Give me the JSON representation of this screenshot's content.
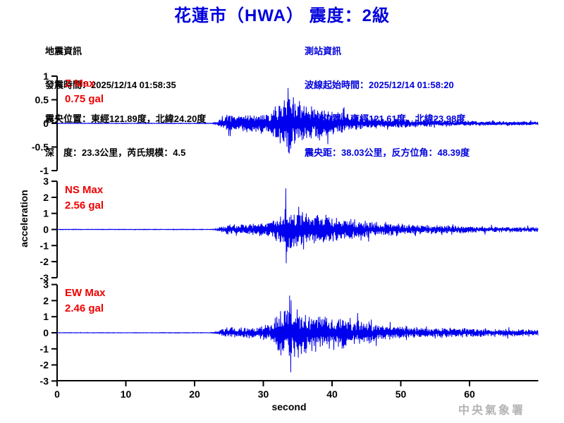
{
  "title": "花蓮市（HWA） 震度：2級",
  "earthquake_info": {
    "heading": "地震資訊",
    "origin_time": "發震時間：2025/12/14 01:58:35",
    "epicenter": "震央位置：東經121.89度，北緯24.20度",
    "depth_magnitude": "深　度：23.3公里，芮氏規模：4.5"
  },
  "station_info": {
    "heading": "測站資訊",
    "wave_start_time": "波線起始時間：2025/12/14 01:58:20",
    "station_location": "測站位置：東經121.61度，北緯23.98度",
    "distance_azimuth": "震央距：38.03公里，反方位角：48.39度"
  },
  "watermark": "中央氣象署",
  "colors": {
    "title_blue": "#0000dd",
    "trace_blue": "#0000ee",
    "max_label_red": "#ee0000",
    "axis_black": "#000000",
    "watermark_gray": "#b3b3b3"
  },
  "chart_data": {
    "type": "line",
    "title": "花蓮市（HWA） 震度：2級",
    "xlabel": "second",
    "ylabel": "acceleration",
    "xlim": [
      0,
      70
    ],
    "xticks": [
      0,
      10,
      20,
      30,
      40,
      50,
      60
    ],
    "grid": false,
    "trace_color": "#0000ee",
    "amplitude_unit": "gal",
    "channels": [
      {
        "name": "Z",
        "max_label": "Z Max",
        "max_text": "0.75 gal",
        "max_value": 0.75,
        "peak_time": 33.6,
        "peak_sign": 1,
        "ylim": [
          -1,
          1
        ],
        "yticks": [
          "1",
          "0.5",
          "0",
          "-0.5",
          "-1"
        ],
        "ytick_values": [
          1,
          0.5,
          0,
          -0.5,
          -1
        ],
        "envelope": [
          [
            0,
            0.005
          ],
          [
            22.5,
            0.006
          ],
          [
            23.2,
            0.02
          ],
          [
            23.6,
            0.08
          ],
          [
            24,
            0.14
          ],
          [
            25,
            0.17
          ],
          [
            26,
            0.15
          ],
          [
            27,
            0.17
          ],
          [
            28,
            0.18
          ],
          [
            29,
            0.17
          ],
          [
            30,
            0.21
          ],
          [
            31,
            0.26
          ],
          [
            32,
            0.4
          ],
          [
            33,
            0.52
          ],
          [
            33.6,
            0.62
          ],
          [
            34.3,
            0.56
          ],
          [
            35,
            0.44
          ],
          [
            36,
            0.36
          ],
          [
            37,
            0.31
          ],
          [
            38,
            0.33
          ],
          [
            39,
            0.29
          ],
          [
            40,
            0.24
          ],
          [
            41,
            0.21
          ],
          [
            42,
            0.19
          ],
          [
            43,
            0.16
          ],
          [
            44,
            0.14
          ],
          [
            45,
            0.12
          ],
          [
            47,
            0.1
          ],
          [
            50,
            0.085
          ],
          [
            53,
            0.065
          ],
          [
            56,
            0.055
          ],
          [
            60,
            0.05
          ],
          [
            64,
            0.045
          ],
          [
            70,
            0.04
          ]
        ]
      },
      {
        "name": "NS",
        "max_label": "NS Max",
        "max_text": "2.56 gal",
        "max_value": 2.56,
        "peak_time": 33.3,
        "peak_sign": 1,
        "ylim": [
          -3,
          3
        ],
        "yticks": [
          "3",
          "2",
          "1",
          "0",
          "-1",
          "-2",
          "-3"
        ],
        "ytick_values": [
          3,
          2,
          1,
          0,
          -1,
          -2,
          -3
        ],
        "envelope": [
          [
            0,
            0.015
          ],
          [
            22.5,
            0.018
          ],
          [
            23.2,
            0.05
          ],
          [
            23.7,
            0.15
          ],
          [
            24,
            0.24
          ],
          [
            25,
            0.3
          ],
          [
            26,
            0.32
          ],
          [
            27,
            0.3
          ],
          [
            28,
            0.32
          ],
          [
            29,
            0.34
          ],
          [
            30,
            0.4
          ],
          [
            31,
            0.48
          ],
          [
            32,
            0.65
          ],
          [
            33,
            1.05
          ],
          [
            33.4,
            1.35
          ],
          [
            34,
            1.15
          ],
          [
            35,
            1.05
          ],
          [
            36,
            1.1
          ],
          [
            37,
            1.05
          ],
          [
            38,
            0.98
          ],
          [
            39,
            0.85
          ],
          [
            40,
            0.78
          ],
          [
            41,
            0.68
          ],
          [
            42,
            0.62
          ],
          [
            43,
            0.57
          ],
          [
            44,
            0.52
          ],
          [
            45,
            0.47
          ],
          [
            46,
            0.42
          ],
          [
            47,
            0.4
          ],
          [
            48,
            0.36
          ],
          [
            50,
            0.32
          ],
          [
            52,
            0.29
          ],
          [
            54,
            0.26
          ],
          [
            56,
            0.23
          ],
          [
            58,
            0.21
          ],
          [
            60,
            0.19
          ],
          [
            63,
            0.175
          ],
          [
            66,
            0.16
          ],
          [
            70,
            0.15
          ]
        ]
      },
      {
        "name": "EW",
        "max_label": "EW Max",
        "max_text": "2.46 gal",
        "max_value": 2.46,
        "peak_time": 34.0,
        "peak_sign": -1,
        "ylim": [
          -3,
          3
        ],
        "yticks": [
          "3",
          "2",
          "1",
          "0",
          "-1",
          "-2",
          "-3"
        ],
        "ytick_values": [
          3,
          2,
          1,
          0,
          -1,
          -2,
          -3
        ],
        "envelope": [
          [
            0,
            0.012
          ],
          [
            22.5,
            0.015
          ],
          [
            23.2,
            0.06
          ],
          [
            23.7,
            0.18
          ],
          [
            24,
            0.27
          ],
          [
            25,
            0.32
          ],
          [
            26,
            0.3
          ],
          [
            27,
            0.32
          ],
          [
            28,
            0.32
          ],
          [
            29,
            0.34
          ],
          [
            30,
            0.42
          ],
          [
            31,
            0.55
          ],
          [
            32,
            0.95
          ],
          [
            33,
            1.45
          ],
          [
            33.8,
            1.65
          ],
          [
            34.5,
            1.55
          ],
          [
            35,
            1.35
          ],
          [
            36,
            1.15
          ],
          [
            37,
            1.0
          ],
          [
            38,
            0.9
          ],
          [
            39,
            0.85
          ],
          [
            40,
            0.8
          ],
          [
            41,
            0.9
          ],
          [
            42,
            0.85
          ],
          [
            43,
            0.75
          ],
          [
            44,
            0.68
          ],
          [
            45,
            0.62
          ],
          [
            46,
            0.52
          ],
          [
            47,
            0.47
          ],
          [
            48,
            0.42
          ],
          [
            50,
            0.37
          ],
          [
            52,
            0.32
          ],
          [
            55,
            0.29
          ],
          [
            58,
            0.26
          ],
          [
            60,
            0.25
          ],
          [
            64,
            0.23
          ],
          [
            70,
            0.2
          ]
        ]
      }
    ]
  }
}
